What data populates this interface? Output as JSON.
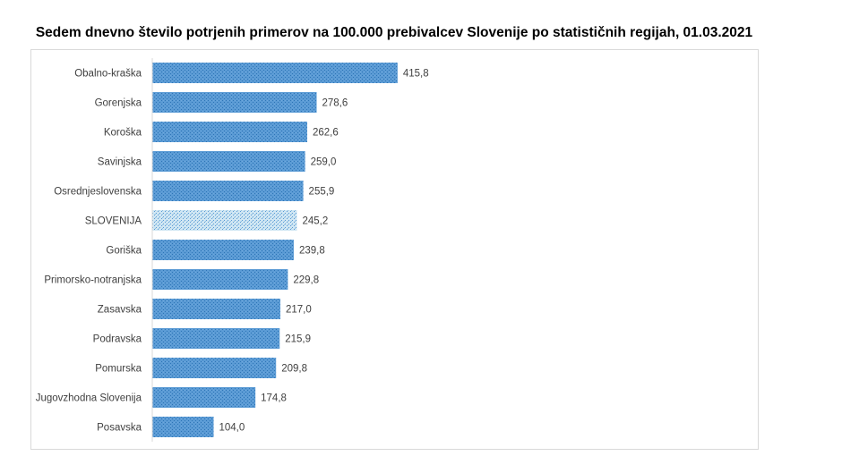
{
  "chart_data": {
    "type": "bar",
    "orientation": "horizontal",
    "title": "Sedem dnevno število potrjenih primerov na 100.000  prebivalcev Slovenije po statističnih regijah, 01.03.2021",
    "xlabel": "",
    "ylabel": "",
    "xlim": [
      0,
      500
    ],
    "grid": false,
    "legend": "none",
    "categories": [
      "Obalno-kraška",
      "Gorenjska",
      "Koroška",
      "Savinjska",
      "Osrednjeslovenska",
      "SLOVENIJA",
      "Goriška",
      "Primorsko-notranjska",
      "Zasavska",
      "Podravska",
      "Pomurska",
      "Jugovzhodna Slovenija",
      "Posavska"
    ],
    "values": [
      415.8,
      278.6,
      262.6,
      259.0,
      255.9,
      245.2,
      239.8,
      229.8,
      217.0,
      215.9,
      209.8,
      174.8,
      104.0
    ],
    "value_labels": [
      "415,8",
      "278,6",
      "262,6",
      "259,0",
      "255,9",
      "245,2",
      "239,8",
      "229,8",
      "217,0",
      "215,9",
      "209,8",
      "174,8",
      "104,0"
    ],
    "highlight_category": "SLOVENIJA",
    "colors": {
      "bar": "#4a90d9",
      "bar_pattern": "#2e75b6",
      "highlight": "#bfe0f0",
      "highlight_pattern": "#5b9bd5",
      "axis": "#d9d9d9",
      "text": "#404040"
    }
  }
}
